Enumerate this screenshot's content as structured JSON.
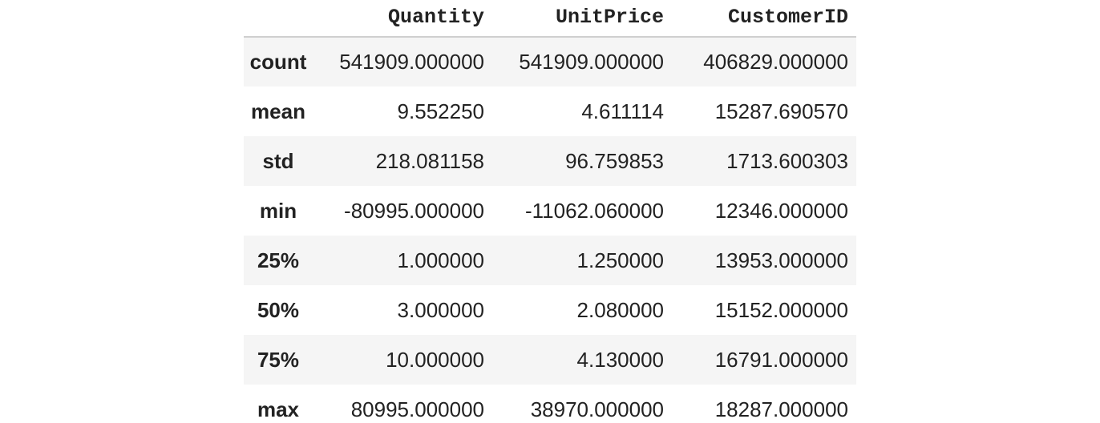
{
  "table": {
    "columns": [
      "",
      "Quantity",
      "UnitPrice",
      "CustomerID"
    ],
    "rows": [
      {
        "label": "count",
        "values": [
          "541909.000000",
          "541909.000000",
          "406829.000000"
        ]
      },
      {
        "label": "mean",
        "values": [
          "9.552250",
          "4.611114",
          "15287.690570"
        ]
      },
      {
        "label": "std",
        "values": [
          "218.081158",
          "96.759853",
          "1713.600303"
        ]
      },
      {
        "label": "min",
        "values": [
          "-80995.000000",
          "-11062.060000",
          "12346.000000"
        ]
      },
      {
        "label": "25%",
        "values": [
          "1.000000",
          "1.250000",
          "13953.000000"
        ]
      },
      {
        "label": "50%",
        "values": [
          "3.000000",
          "2.080000",
          "15152.000000"
        ]
      },
      {
        "label": "75%",
        "values": [
          "10.000000",
          "4.130000",
          "16791.000000"
        ]
      },
      {
        "label": "max",
        "values": [
          "80995.000000",
          "38970.000000",
          "18287.000000"
        ]
      }
    ]
  },
  "colors": {
    "stripe": "#f5f5f5",
    "header_rule": "#cfcfcf",
    "text": "#222222"
  }
}
